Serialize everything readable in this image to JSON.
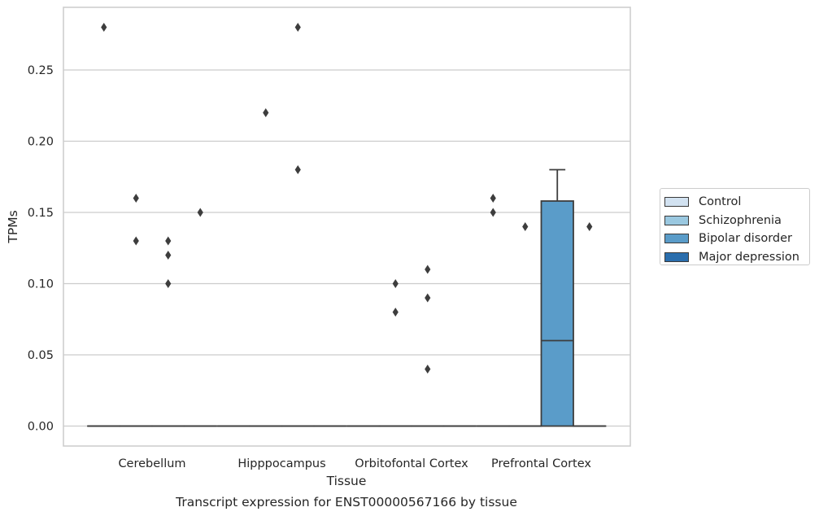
{
  "chart_data": {
    "type": "box",
    "xlabel": "Tissue",
    "ylabel": "TPMs",
    "caption": "Transcript expression for ENST00000567166 by tissue",
    "ylim": [
      -0.014,
      0.294
    ],
    "yticks": [
      0.0,
      0.05,
      0.1,
      0.15,
      0.2,
      0.25
    ],
    "ytick_labels": [
      "0.00",
      "0.05",
      "0.10",
      "0.15",
      "0.20",
      "0.25"
    ],
    "grid": "horizontal",
    "legend_position": "right",
    "categories": [
      "Cerebellum",
      "Hipppocampus",
      "Orbitofontal Cortex",
      "Prefrontal Cortex"
    ],
    "series": [
      {
        "name": "Control",
        "color": "#d2e2f1",
        "boxes": [
          {
            "q1": 0,
            "median": 0,
            "q3": 0,
            "whislo": 0,
            "whishi": 0,
            "outliers": [
              0.28
            ]
          },
          {
            "q1": 0,
            "median": 0,
            "q3": 0,
            "whislo": 0,
            "whishi": 0,
            "outliers": []
          },
          {
            "q1": 0,
            "median": 0,
            "q3": 0,
            "whislo": 0,
            "whishi": 0,
            "outliers": []
          },
          {
            "q1": 0,
            "median": 0,
            "q3": 0,
            "whislo": 0,
            "whishi": 0,
            "outliers": [
              0.16,
              0.15
            ]
          }
        ]
      },
      {
        "name": "Schizophrenia",
        "color": "#9ac8e0",
        "boxes": [
          {
            "q1": 0,
            "median": 0,
            "q3": 0,
            "whislo": 0,
            "whishi": 0,
            "outliers": [
              0.16,
              0.13
            ]
          },
          {
            "q1": 0,
            "median": 0,
            "q3": 0,
            "whislo": 0,
            "whishi": 0,
            "outliers": [
              0.22
            ]
          },
          {
            "q1": 0,
            "median": 0,
            "q3": 0,
            "whislo": 0,
            "whishi": 0,
            "outliers": [
              0.1,
              0.08
            ]
          },
          {
            "q1": 0,
            "median": 0,
            "q3": 0,
            "whislo": 0,
            "whishi": 0,
            "outliers": [
              0.14
            ]
          }
        ]
      },
      {
        "name": "Bipolar disorder",
        "color": "#5a9cc9",
        "boxes": [
          {
            "q1": 0,
            "median": 0,
            "q3": 0,
            "whislo": 0,
            "whishi": 0,
            "outliers": [
              0.13,
              0.12,
              0.1
            ]
          },
          {
            "q1": 0,
            "median": 0,
            "q3": 0,
            "whislo": 0,
            "whishi": 0,
            "outliers": [
              0.28,
              0.18
            ]
          },
          {
            "q1": 0,
            "median": 0,
            "q3": 0,
            "whislo": 0,
            "whishi": 0,
            "outliers": [
              0.11,
              0.09,
              0.04
            ]
          },
          {
            "q1": 0,
            "median": 0.06,
            "q3": 0.158,
            "whislo": 0,
            "whishi": 0.18,
            "outliers": []
          }
        ]
      },
      {
        "name": "Major depression",
        "color": "#2a6ead",
        "boxes": [
          {
            "q1": 0,
            "median": 0,
            "q3": 0,
            "whislo": 0,
            "whishi": 0,
            "outliers": [
              0.15
            ]
          },
          {
            "q1": 0,
            "median": 0,
            "q3": 0,
            "whislo": 0,
            "whishi": 0,
            "outliers": []
          },
          {
            "q1": 0,
            "median": 0,
            "q3": 0,
            "whislo": 0,
            "whishi": 0,
            "outliers": []
          },
          {
            "q1": 0,
            "median": 0,
            "q3": 0,
            "whislo": 0,
            "whishi": 0,
            "outliers": [
              0.14
            ]
          }
        ]
      }
    ]
  }
}
